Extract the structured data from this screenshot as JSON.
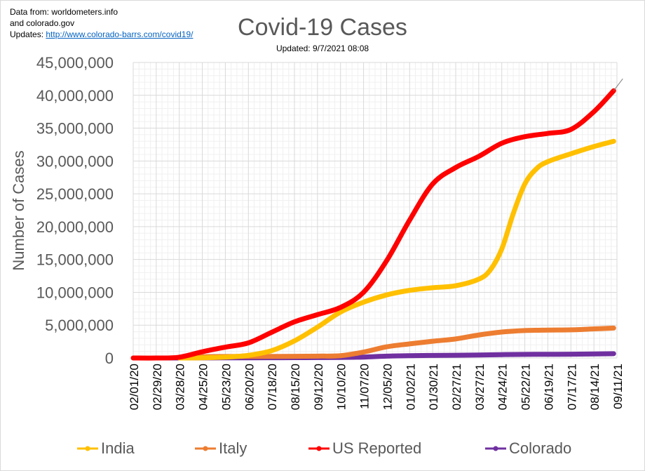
{
  "source": {
    "line1": "Data from: worldometers.info",
    "line2": "and colorado.gov",
    "updates_label": "Updates:",
    "updates_link": "http://www.colorado-barrs.com/covid19/"
  },
  "chart_data": {
    "type": "line",
    "title": "Covid-19 Cases",
    "subtitle": "Updated: 9/7/2021 08:08",
    "ylabel": "Number of Cases",
    "xlabel": "",
    "ylim": [
      0,
      45000000
    ],
    "y_ticks": [
      0,
      5000000,
      10000000,
      15000000,
      20000000,
      25000000,
      30000000,
      35000000,
      40000000,
      45000000
    ],
    "y_tick_labels": [
      "0",
      "5,000,000",
      "10,000,000",
      "15,000,000",
      "20,000,000",
      "25,000,000",
      "30,000,000",
      "35,000,000",
      "40,000,000",
      "45,000,000"
    ],
    "x_tick_labels": [
      "02/01/20",
      "02/29/20",
      "03/28/20",
      "04/25/20",
      "05/23/20",
      "06/20/20",
      "07/18/20",
      "08/15/20",
      "09/12/20",
      "10/10/20",
      "11/07/20",
      "12/05/20",
      "01/02/21",
      "01/30/21",
      "02/27/21",
      "03/27/21",
      "04/24/21",
      "05/22/21",
      "06/19/21",
      "07/17/21",
      "08/14/21",
      "09/11/21"
    ],
    "grid": true,
    "legend_position": "bottom",
    "series": [
      {
        "name": "India",
        "color": "#ffc000",
        "points": [
          [
            "03/28/20",
            0
          ],
          [
            "04/25/20",
            25000
          ],
          [
            "05/23/20",
            130000
          ],
          [
            "06/20/20",
            400000
          ],
          [
            "07/18/20",
            1100000
          ],
          [
            "08/15/20",
            2600000
          ],
          [
            "09/12/20",
            4700000
          ],
          [
            "10/10/20",
            7000000
          ],
          [
            "11/07/20",
            8500000
          ],
          [
            "12/05/20",
            9600000
          ],
          [
            "01/02/21",
            10300000
          ],
          [
            "01/30/21",
            10700000
          ],
          [
            "02/27/21",
            11000000
          ],
          [
            "03/27/21",
            12000000
          ],
          [
            "04/10/21",
            13400000
          ],
          [
            "04/24/21",
            16600000
          ],
          [
            "05/08/21",
            22000000
          ],
          [
            "05/22/21",
            26500000
          ],
          [
            "06/05/21",
            28800000
          ],
          [
            "06/19/21",
            29900000
          ],
          [
            "07/17/21",
            31100000
          ],
          [
            "08/14/21",
            32200000
          ],
          [
            "09/07/21",
            33000000
          ]
        ]
      },
      {
        "name": "Italy",
        "color": "#ed7d31",
        "points": [
          [
            "03/28/20",
            90000
          ],
          [
            "04/25/20",
            195000
          ],
          [
            "05/23/20",
            229000
          ],
          [
            "06/20/20",
            238000
          ],
          [
            "07/18/20",
            244000
          ],
          [
            "08/15/20",
            253000
          ],
          [
            "09/12/20",
            286000
          ],
          [
            "10/10/20",
            350000
          ],
          [
            "11/07/20",
            900000
          ],
          [
            "12/05/20",
            1700000
          ],
          [
            "01/02/21",
            2150000
          ],
          [
            "01/30/21",
            2550000
          ],
          [
            "02/27/21",
            2900000
          ],
          [
            "03/27/21",
            3500000
          ],
          [
            "04/24/21",
            3950000
          ],
          [
            "05/22/21",
            4180000
          ],
          [
            "06/19/21",
            4250000
          ],
          [
            "07/17/21",
            4290000
          ],
          [
            "08/14/21",
            4430000
          ],
          [
            "09/07/21",
            4560000
          ]
        ]
      },
      {
        "name": "US Reported",
        "color": "#ff0000",
        "points": [
          [
            "02/01/20",
            0
          ],
          [
            "02/29/20",
            100
          ],
          [
            "03/28/20",
            120000
          ],
          [
            "04/25/20",
            950000
          ],
          [
            "05/23/20",
            1650000
          ],
          [
            "06/20/20",
            2300000
          ],
          [
            "07/18/20",
            3900000
          ],
          [
            "08/15/20",
            5500000
          ],
          [
            "09/12/20",
            6600000
          ],
          [
            "10/10/20",
            7700000
          ],
          [
            "11/07/20",
            10000000
          ],
          [
            "12/05/20",
            14800000
          ],
          [
            "01/02/21",
            21000000
          ],
          [
            "01/30/21",
            26500000
          ],
          [
            "02/27/21",
            29000000
          ],
          [
            "03/27/21",
            30700000
          ],
          [
            "04/24/21",
            32700000
          ],
          [
            "05/22/21",
            33700000
          ],
          [
            "06/19/21",
            34200000
          ],
          [
            "07/17/21",
            34800000
          ],
          [
            "08/14/21",
            37500000
          ],
          [
            "09/07/21",
            40700000
          ]
        ]
      },
      {
        "name": "Colorado",
        "color": "#7030a0",
        "points": [
          [
            "03/05/20",
            0
          ],
          [
            "03/28/20",
            2000
          ],
          [
            "04/25/20",
            11000
          ],
          [
            "05/23/20",
            24000
          ],
          [
            "06/20/20",
            31000
          ],
          [
            "07/18/20",
            40000
          ],
          [
            "08/15/20",
            53000
          ],
          [
            "09/12/20",
            61000
          ],
          [
            "10/10/20",
            80000
          ],
          [
            "11/07/20",
            140000
          ],
          [
            "12/05/20",
            280000
          ],
          [
            "01/02/21",
            350000
          ],
          [
            "01/30/21",
            390000
          ],
          [
            "02/27/21",
            420000
          ],
          [
            "03/27/21",
            460000
          ],
          [
            "04/24/21",
            510000
          ],
          [
            "05/22/21",
            550000
          ],
          [
            "06/19/21",
            560000
          ],
          [
            "07/17/21",
            570000
          ],
          [
            "08/14/21",
            620000
          ],
          [
            "09/07/21",
            660000
          ]
        ]
      }
    ]
  }
}
